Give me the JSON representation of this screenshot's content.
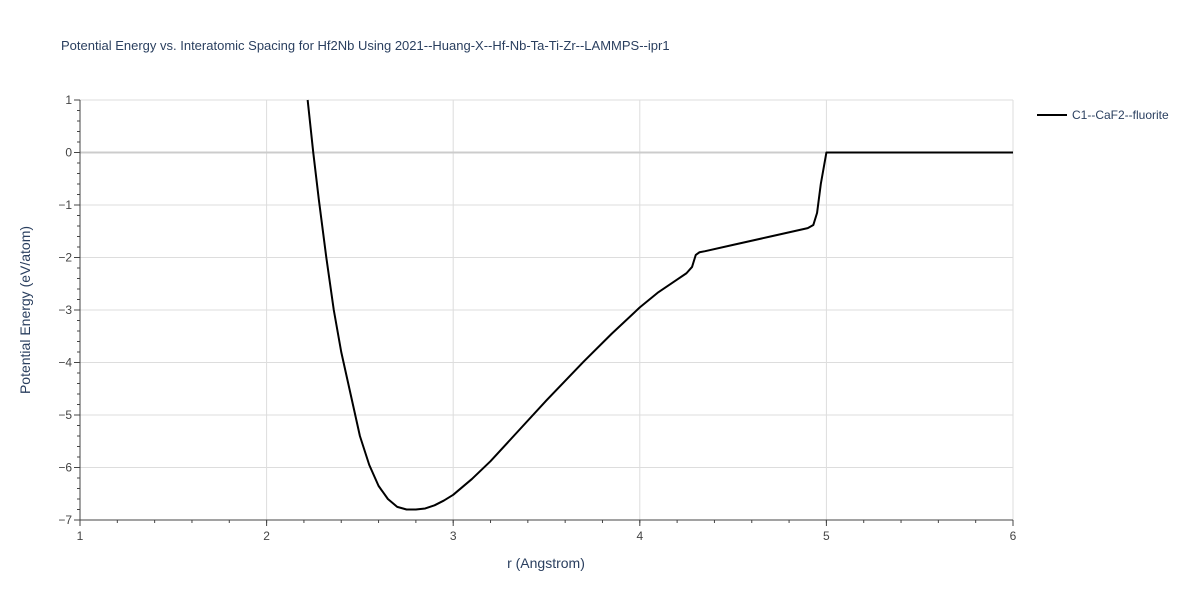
{
  "chart_data": {
    "type": "line",
    "title": "Potential Energy vs. Interatomic Spacing for Hf2Nb Using 2021--Huang-X--Hf-Nb-Ta-Ti-Zr--LAMMPS--ipr1",
    "xlabel": "r (Angstrom)",
    "ylabel": "Potential Energy (eV/atom)",
    "xlim": [
      1,
      6
    ],
    "ylim": [
      -7,
      1
    ],
    "xticks": [
      1,
      2,
      3,
      4,
      5,
      6
    ],
    "yticks": [
      1,
      0,
      -1,
      -2,
      -3,
      -4,
      -5,
      -6,
      -7
    ],
    "ytick_labels": [
      "1",
      "0",
      "−1",
      "−2",
      "−3",
      "−4",
      "−5",
      "−6",
      "−7"
    ],
    "grid": true,
    "legend_position": "top-right",
    "series": [
      {
        "name": "C1--CaF2--fluorite",
        "color": "#000000",
        "x": [
          2.22,
          2.25,
          2.28,
          2.32,
          2.36,
          2.4,
          2.45,
          2.5,
          2.55,
          2.6,
          2.65,
          2.7,
          2.75,
          2.8,
          2.85,
          2.9,
          2.95,
          3.0,
          3.1,
          3.2,
          3.35,
          3.5,
          3.7,
          3.85,
          4.0,
          4.1,
          4.2,
          4.25,
          4.28,
          4.3,
          4.32,
          4.35,
          4.5,
          4.7,
          4.9,
          4.93,
          4.95,
          4.97,
          5.0,
          5.2,
          5.5,
          6.0
        ],
        "y": [
          1.0,
          0.0,
          -0.9,
          -2.0,
          -3.0,
          -3.8,
          -4.6,
          -5.4,
          -5.95,
          -6.35,
          -6.6,
          -6.75,
          -6.8,
          -6.8,
          -6.78,
          -6.72,
          -6.63,
          -6.52,
          -6.22,
          -5.88,
          -5.3,
          -4.72,
          -3.98,
          -3.45,
          -2.95,
          -2.66,
          -2.42,
          -2.3,
          -2.18,
          -1.95,
          -1.9,
          -1.88,
          -1.76,
          -1.6,
          -1.44,
          -1.38,
          -1.15,
          -0.6,
          0.0,
          0.0,
          0.0,
          0.0
        ]
      }
    ]
  }
}
